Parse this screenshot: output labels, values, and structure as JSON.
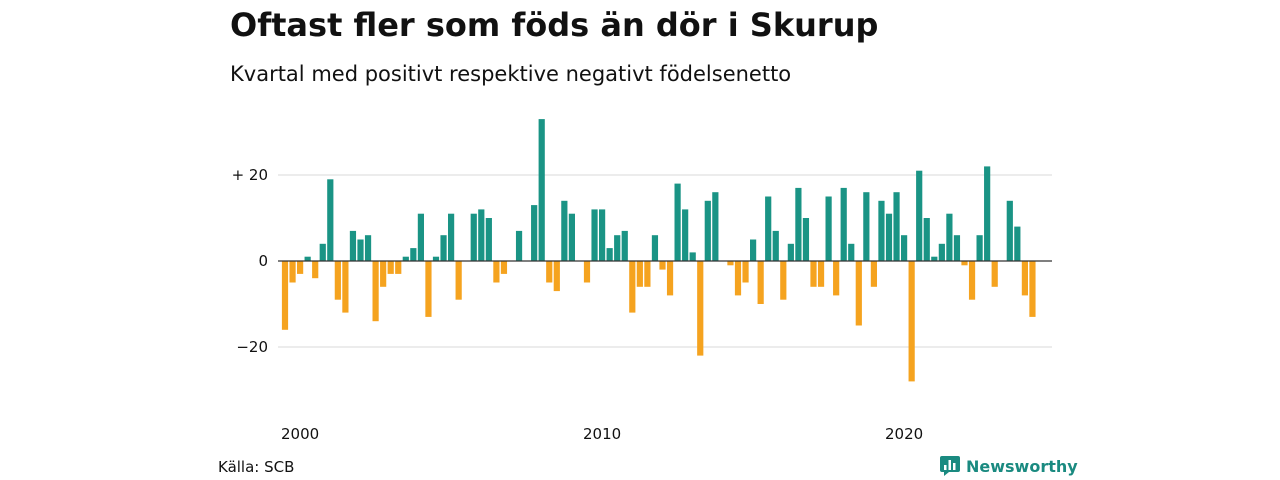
{
  "title": "Oftast fler som föds än dör i Skurup",
  "subtitle": "Kvartal med positivt respektive negativt födelsenetto",
  "source": "Källa: SCB",
  "brand": "Newsworthy",
  "colors": {
    "positive": "#1a9485",
    "negative": "#f5a31f",
    "grid": "#d9d9d9",
    "zero": "#333333"
  },
  "chart_data": {
    "type": "bar",
    "title": "Oftast fler som föds än dör i Skurup",
    "subtitle": "Kvartal med positivt respektive negativt födelsenetto",
    "ylim": [
      -30,
      35
    ],
    "yticks": [
      20,
      0,
      -20
    ],
    "ytick_labels": [
      "+ 20",
      "0",
      "−20"
    ],
    "xtick_labels": [
      "2000",
      "2010",
      "2020"
    ],
    "xtick_years": [
      2000,
      2010,
      2020
    ],
    "start_year": 2000,
    "grid": true,
    "values": [
      -16,
      -5,
      -3,
      1,
      -4,
      4,
      19,
      -9,
      -12,
      7,
      5,
      6,
      -14,
      -6,
      -3,
      -3,
      1,
      3,
      11,
      -13,
      1,
      6,
      11,
      -9,
      0,
      11,
      12,
      10,
      -5,
      -3,
      0,
      7,
      0,
      13,
      33,
      -5,
      -7,
      14,
      11,
      0,
      -5,
      12,
      12,
      3,
      6,
      7,
      -12,
      -6,
      -6,
      6,
      -2,
      -8,
      18,
      12,
      2,
      -22,
      14,
      16,
      0,
      -1,
      -8,
      -5,
      5,
      -10,
      15,
      7,
      -9,
      4,
      17,
      10,
      -6,
      -6,
      15,
      -8,
      17,
      4,
      -15,
      16,
      -6,
      14,
      11,
      16,
      6,
      -28,
      21,
      10,
      1,
      4,
      11,
      6,
      -1,
      -9,
      6,
      22,
      -6,
      0,
      14,
      8,
      -8,
      -13
    ]
  }
}
